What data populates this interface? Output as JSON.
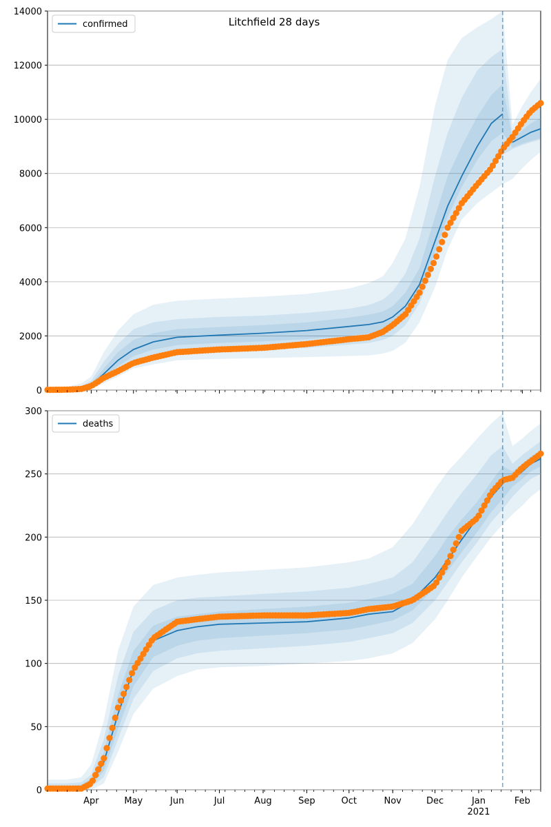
{
  "figure_title": "Litchfield 28 days",
  "x_axis": {
    "date_start": "2020-03-01",
    "date_end": "2021-02-14",
    "month_ticks": [
      {
        "label": "Apr",
        "date": "2020-04-01"
      },
      {
        "label": "May",
        "date": "2020-05-01"
      },
      {
        "label": "Jun",
        "date": "2020-06-01"
      },
      {
        "label": "Jul",
        "date": "2020-07-01"
      },
      {
        "label": "Aug",
        "date": "2020-08-01"
      },
      {
        "label": "Sep",
        "date": "2020-09-01"
      },
      {
        "label": "Oct",
        "date": "2020-10-01"
      },
      {
        "label": "Nov",
        "date": "2020-11-01"
      },
      {
        "label": "Dec",
        "date": "2020-12-01"
      },
      {
        "label": "Jan",
        "date": "2021-01-01"
      },
      {
        "label": "Feb",
        "date": "2021-02-01"
      }
    ],
    "year_label": "2021",
    "forecast_start": "2021-01-18"
  },
  "colors": {
    "model_line": "#1f77b4",
    "observed_points": "#ff7f0e",
    "band": "#1f77b4",
    "forecast_line": "#1f77b4",
    "grid": "#b0b0b0"
  },
  "chart_data": [
    {
      "type": "line",
      "legend": "confirmed",
      "legend_position": "upper-left",
      "grid": "horizontal",
      "ylim": [
        0,
        14000
      ],
      "yticks": [
        "0",
        "2000",
        "4000",
        "6000",
        "8000",
        "10000",
        "12000",
        "14000"
      ],
      "series": [
        {
          "name": "confirmed",
          "kind": "model-median",
          "x": [
            "2020-03-01",
            "2020-03-15",
            "2020-03-25",
            "2020-04-01",
            "2020-04-10",
            "2020-04-20",
            "2020-05-01",
            "2020-05-15",
            "2020-06-01",
            "2020-07-01",
            "2020-08-01",
            "2020-09-01",
            "2020-10-01",
            "2020-10-15",
            "2020-10-25",
            "2020-11-01",
            "2020-11-10",
            "2020-11-20",
            "2020-12-01",
            "2020-12-10",
            "2020-12-20",
            "2020-12-31",
            "2021-01-10",
            "2021-01-18",
            "2021-01-25",
            "2021-02-01",
            "2021-02-07",
            "2021-02-14"
          ],
          "values": [
            10,
            15,
            50,
            180,
            600,
            1100,
            1500,
            1780,
            1950,
            2030,
            2100,
            2200,
            2350,
            2420,
            2520,
            2700,
            3100,
            3900,
            5500,
            6800,
            7900,
            9000,
            9850,
            10200,
            9150,
            9350,
            9520,
            9650
          ]
        },
        {
          "kind": "observed",
          "x": [
            "2020-03-01",
            "2020-03-15",
            "2020-03-25",
            "2020-04-01",
            "2020-04-10",
            "2020-04-20",
            "2020-05-01",
            "2020-05-15",
            "2020-06-01",
            "2020-07-01",
            "2020-08-01",
            "2020-09-01",
            "2020-10-01",
            "2020-10-15",
            "2020-10-25",
            "2020-11-01",
            "2020-11-10",
            "2020-11-20",
            "2020-12-01",
            "2020-12-10",
            "2020-12-20",
            "2020-12-31",
            "2021-01-10",
            "2021-01-18",
            "2021-01-25",
            "2021-02-01",
            "2021-02-07",
            "2021-02-14"
          ],
          "values": [
            10,
            15,
            40,
            150,
            450,
            700,
            1000,
            1200,
            1400,
            1500,
            1560,
            1700,
            1880,
            1950,
            2150,
            2400,
            2800,
            3600,
            4800,
            6000,
            6900,
            7600,
            8200,
            8900,
            9350,
            9900,
            10300,
            10600
          ]
        }
      ],
      "bands": [
        {
          "level": "outer",
          "lower": [
            0,
            5,
            20,
            60,
            250,
            500,
            800,
            950,
            1100,
            1150,
            1180,
            1220,
            1260,
            1280,
            1350,
            1450,
            1750,
            2500,
            3800,
            5200,
            6300,
            6900,
            7300,
            7600,
            7800,
            8200,
            8500,
            8800
          ],
          "upper": [
            60,
            120,
            250,
            500,
            1400,
            2200,
            2800,
            3150,
            3300,
            3380,
            3450,
            3550,
            3750,
            3950,
            4200,
            4700,
            5600,
            7500,
            10500,
            12200,
            13000,
            13400,
            13700,
            14000,
            9800,
            10500,
            11000,
            11500
          ]
        },
        {
          "level": "middle",
          "lower": [
            0,
            8,
            30,
            100,
            380,
            700,
            1050,
            1250,
            1400,
            1450,
            1490,
            1560,
            1680,
            1740,
            1850,
            2000,
            2400,
            3200,
            4700,
            6100,
            7100,
            7800,
            8400,
            8700,
            8900,
            9050,
            9150,
            9250
          ],
          "upper": [
            40,
            80,
            150,
            340,
            1050,
            1700,
            2250,
            2500,
            2620,
            2700,
            2750,
            2850,
            3000,
            3140,
            3340,
            3650,
            4300,
            5600,
            7900,
            9500,
            10800,
            11800,
            12300,
            12600,
            9400,
            9900,
            10300,
            10700
          ]
        },
        {
          "level": "inner",
          "lower": [
            2,
            10,
            40,
            130,
            470,
            880,
            1250,
            1500,
            1660,
            1740,
            1800,
            1880,
            2000,
            2080,
            2200,
            2380,
            2800,
            3600,
            5100,
            6400,
            7500,
            8500,
            9200,
            9500,
            8950,
            9100,
            9200,
            9300
          ],
          "upper": [
            20,
            30,
            80,
            250,
            800,
            1400,
            1850,
            2100,
            2250,
            2330,
            2400,
            2500,
            2680,
            2780,
            2900,
            3100,
            3600,
            4500,
            6400,
            7900,
            9000,
            10100,
            10900,
            11300,
            9250,
            9600,
            9850,
            10050
          ]
        }
      ]
    },
    {
      "type": "line",
      "legend": "deaths",
      "legend_position": "upper-left",
      "grid": "horizontal",
      "ylim": [
        0,
        300
      ],
      "yticks": [
        "0",
        "50",
        "100",
        "150",
        "200",
        "250",
        "300"
      ],
      "series": [
        {
          "name": "deaths",
          "kind": "model-median",
          "x": [
            "2020-03-01",
            "2020-03-15",
            "2020-03-25",
            "2020-04-01",
            "2020-04-10",
            "2020-04-20",
            "2020-05-01",
            "2020-05-15",
            "2020-06-01",
            "2020-06-15",
            "2020-07-01",
            "2020-08-01",
            "2020-09-01",
            "2020-10-01",
            "2020-10-15",
            "2020-11-01",
            "2020-11-15",
            "2020-12-01",
            "2020-12-10",
            "2020-12-20",
            "2020-12-31",
            "2021-01-10",
            "2021-01-18",
            "2021-01-25",
            "2021-02-01",
            "2021-02-07",
            "2021-02-14"
          ],
          "values": [
            0,
            0,
            1,
            5,
            22,
            60,
            95,
            118,
            126,
            129,
            131,
            132,
            133,
            136,
            139,
            141,
            150,
            168,
            182,
            198,
            215,
            232,
            242,
            246,
            252,
            258,
            262
          ]
        },
        {
          "kind": "observed",
          "x": [
            "2020-03-01",
            "2020-03-15",
            "2020-03-25",
            "2020-04-01",
            "2020-04-10",
            "2020-04-20",
            "2020-05-01",
            "2020-05-15",
            "2020-06-01",
            "2020-06-15",
            "2020-07-01",
            "2020-08-01",
            "2020-09-01",
            "2020-10-01",
            "2020-10-15",
            "2020-11-01",
            "2020-11-15",
            "2020-12-01",
            "2020-12-10",
            "2020-12-20",
            "2020-12-31",
            "2021-01-10",
            "2021-01-18",
            "2021-01-25",
            "2021-02-01",
            "2021-02-07",
            "2021-02-14"
          ],
          "values": [
            1,
            1,
            1,
            5,
            25,
            65,
            95,
            120,
            133,
            135,
            137,
            138,
            138,
            140,
            143,
            145,
            150,
            162,
            180,
            205,
            215,
            235,
            245,
            247,
            255,
            260,
            266
          ]
        }
      ],
      "bands": [
        {
          "level": "outer",
          "lower": [
            0,
            0,
            0,
            0,
            5,
            30,
            60,
            80,
            90,
            95,
            97,
            98,
            100,
            102,
            104,
            108,
            116,
            135,
            150,
            168,
            185,
            200,
            210,
            218,
            225,
            232,
            238
          ],
          "upper": [
            8,
            8,
            10,
            20,
            55,
            110,
            145,
            162,
            168,
            170,
            172,
            174,
            176,
            180,
            183,
            192,
            210,
            238,
            252,
            264,
            278,
            290,
            298,
            272,
            278,
            284,
            290
          ]
        },
        {
          "level": "middle",
          "lower": [
            0,
            0,
            0,
            2,
            10,
            40,
            72,
            94,
            104,
            108,
            110,
            112,
            114,
            117,
            120,
            124,
            132,
            150,
            164,
            180,
            196,
            212,
            222,
            232,
            240,
            246,
            250
          ],
          "upper": [
            5,
            5,
            6,
            12,
            40,
            90,
            125,
            142,
            150,
            152,
            153,
            155,
            157,
            160,
            163,
            168,
            180,
            205,
            220,
            235,
            250,
            265,
            272,
            258,
            265,
            270,
            276
          ]
        },
        {
          "level": "inner",
          "lower": [
            0,
            0,
            0,
            3,
            15,
            48,
            82,
            105,
            114,
            118,
            120,
            122,
            124,
            127,
            130,
            134,
            142,
            160,
            173,
            188,
            204,
            220,
            230,
            240,
            246,
            252,
            256
          ],
          "upper": [
            3,
            3,
            4,
            9,
            30,
            75,
            110,
            130,
            137,
            139,
            141,
            143,
            145,
            148,
            151,
            155,
            163,
            185,
            200,
            214,
            228,
            244,
            256,
            252,
            258,
            264,
            268
          ]
        }
      ]
    }
  ]
}
